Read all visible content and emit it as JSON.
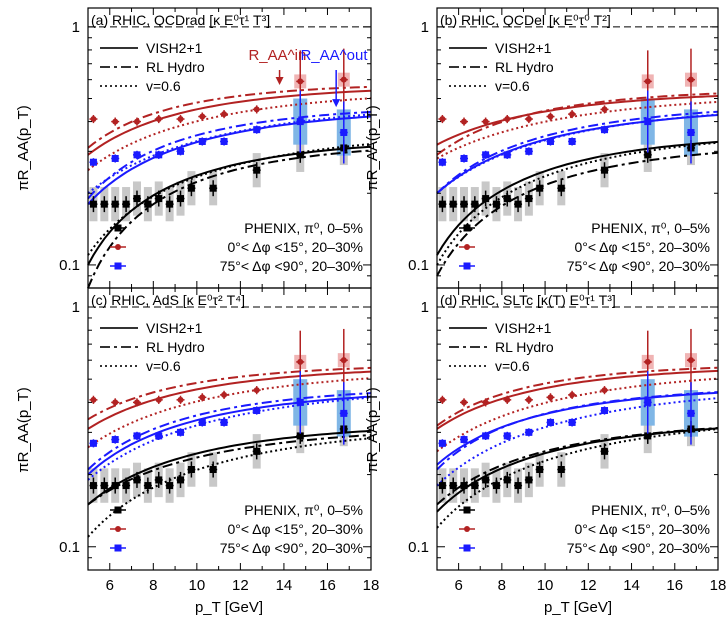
{
  "figure": {
    "ylabel": "πR_AA(p_T)",
    "xlabel": "p_T [GeV]"
  },
  "legend": {
    "models": [
      {
        "label": "VISH2+1",
        "style": "solid"
      },
      {
        "label": "RL Hydro",
        "style": "dashdot"
      },
      {
        "label": "v=0.6",
        "style": "dotted"
      }
    ],
    "data": [
      {
        "label": "PHENIX, π⁰, 0–5%",
        "color": "#000000",
        "marker": "square"
      },
      {
        "label": "0°< Δφ <15°, 20–30%",
        "color": "#b22222",
        "marker": "circle"
      },
      {
        "label": "75°< Δφ <90°, 20–30%",
        "color": "#1a1aff",
        "marker": "square"
      }
    ],
    "annotation_in": "R_AA^in",
    "annotation_out": "R_AA^out"
  },
  "colors": {
    "black": "#000000",
    "red": "#b22222",
    "blue": "#1a1aff",
    "redband": "#f0b4b4",
    "blueband": "#7fb6e6",
    "grayband": "#c8c8c8"
  },
  "chart_data": [
    {
      "type": "scatter",
      "title": "(a) RHIC, QCDrad [κ E⁰τ¹ T³]",
      "xlim": [
        5,
        18
      ],
      "ylim": [
        0.08,
        1.2
      ],
      "yscale": "log",
      "xticks": [
        6,
        8,
        10,
        12,
        14,
        16,
        18
      ],
      "yticks": [
        0.1,
        1
      ],
      "series": [
        {
          "name": "PHENIX, π⁰, 0–5%",
          "x": [
            5.25,
            5.75,
            6.25,
            6.75,
            7.25,
            7.75,
            8.25,
            8.75,
            9.25,
            9.75,
            10.75,
            12.75,
            14.75,
            16.75
          ],
          "y": [
            0.18,
            0.18,
            0.18,
            0.18,
            0.19,
            0.18,
            0.19,
            0.18,
            0.19,
            0.21,
            0.21,
            0.25,
            0.29,
            0.31
          ]
        },
        {
          "name": "0°< Δφ <15°, 20–30%",
          "x": [
            5.25,
            6.25,
            7.25,
            8.25,
            9.25,
            10.25,
            11.25,
            12.75,
            14.75,
            16.75
          ],
          "y": [
            0.41,
            0.4,
            0.4,
            0.41,
            0.41,
            0.42,
            0.43,
            0.45,
            0.59,
            0.6
          ]
        },
        {
          "name": "75°< Δφ <90°, 20–30%",
          "x": [
            5.25,
            6.25,
            7.25,
            8.25,
            9.25,
            10.25,
            11.25,
            12.75,
            14.75,
            16.75
          ],
          "y": [
            0.27,
            0.28,
            0.29,
            0.29,
            0.3,
            0.33,
            0.33,
            0.37,
            0.4,
            0.36
          ]
        }
      ]
    },
    {
      "type": "scatter",
      "title": "(b) RHIC, QCDel [κ E⁰τ⁰ T²]",
      "xlim": [
        5,
        18
      ],
      "ylim": [
        0.08,
        1.2
      ],
      "yscale": "log",
      "xticks": [
        6,
        8,
        10,
        12,
        14,
        16,
        18
      ],
      "yticks": [
        0.1,
        1
      ]
    },
    {
      "type": "scatter",
      "title": "(c) RHIC, AdS [κ E⁰τ² T⁴]",
      "xlim": [
        5,
        18
      ],
      "ylim": [
        0.08,
        1.2
      ],
      "yscale": "log",
      "xticks": [
        6,
        8,
        10,
        12,
        14,
        16,
        18
      ],
      "yticks": [
        0.1,
        1
      ]
    },
    {
      "type": "scatter",
      "title": "(d) RHIC, SLTc [κ(T) E⁰τ¹ T³]",
      "xlim": [
        5,
        18
      ],
      "ylim": [
        0.08,
        1.2
      ],
      "yscale": "log",
      "xticks": [
        6,
        8,
        10,
        12,
        14,
        16,
        18
      ],
      "yticks": [
        0.1,
        1
      ]
    }
  ]
}
